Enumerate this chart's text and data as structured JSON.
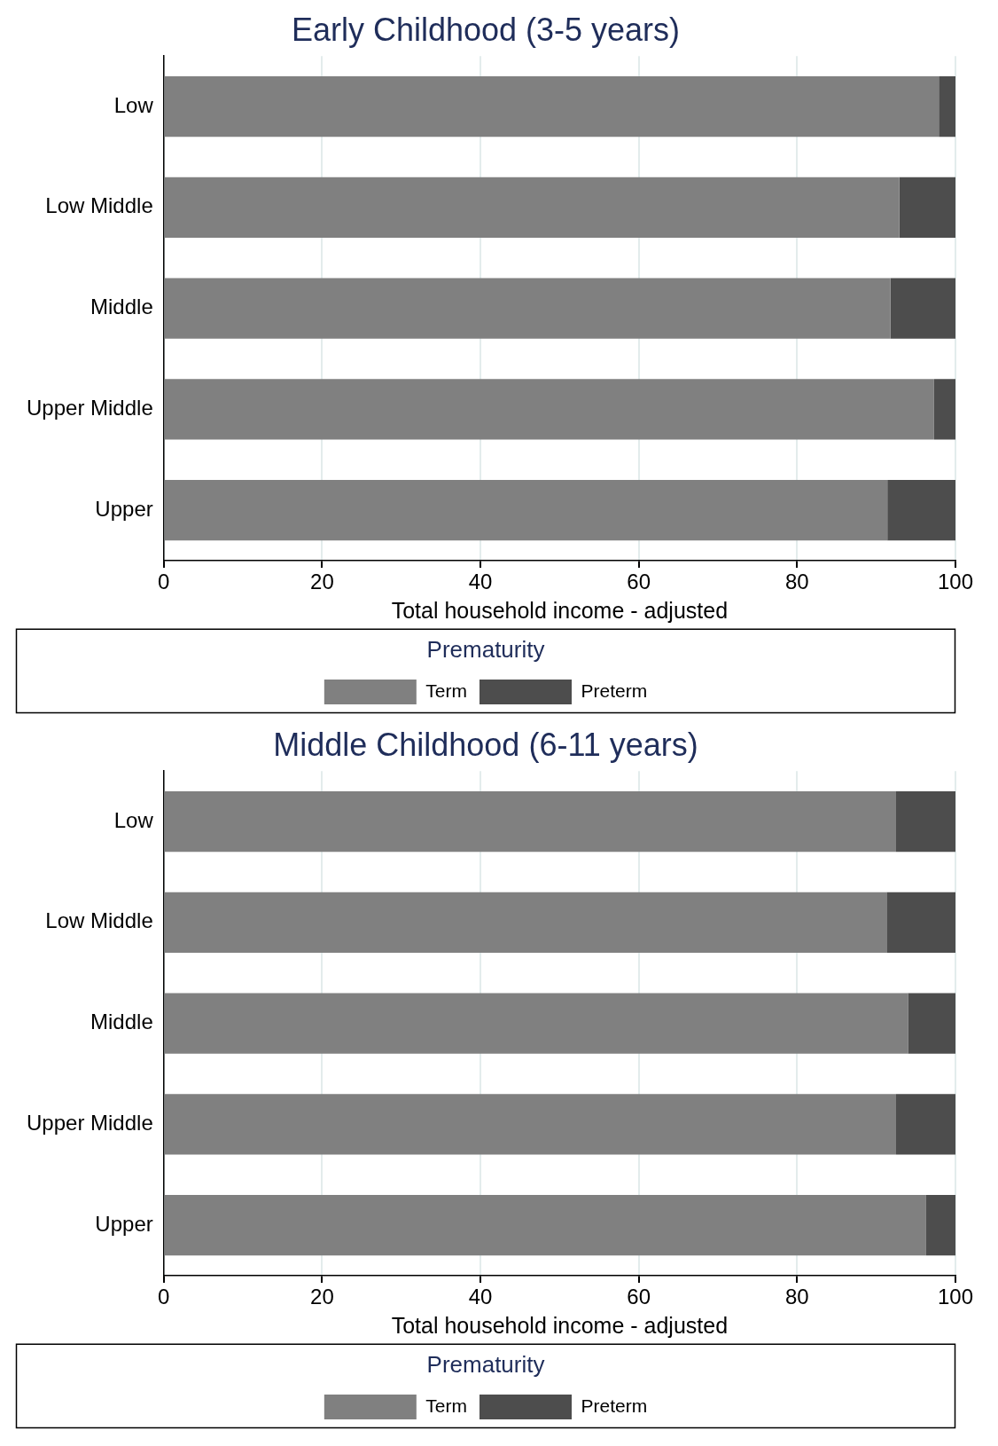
{
  "chart_data": [
    {
      "type": "bar",
      "orientation": "horizontal",
      "stacked": true,
      "title": "Early Childhood (3-5 years)",
      "xlabel": "Total household income - adjusted",
      "legend_title": "Prematurity",
      "legend": "bottom",
      "grid": "x",
      "categories": [
        "Low",
        "Low Middle",
        "Middle",
        "Upper Middle",
        "Upper"
      ],
      "xlim": [
        0,
        100
      ],
      "xticks": [
        0,
        20,
        40,
        60,
        80,
        100
      ],
      "series": [
        {
          "name": "Term",
          "color": "#808080",
          "values": [
            97.9,
            92.9,
            91.8,
            97.3,
            91.4
          ]
        },
        {
          "name": "Preterm",
          "color": "#4d4d4d",
          "values": [
            2.1,
            7.1,
            8.2,
            2.7,
            8.6
          ]
        }
      ]
    },
    {
      "type": "bar",
      "orientation": "horizontal",
      "stacked": true,
      "title": "Middle Childhood (6-11 years)",
      "xlabel": "Total household income - adjusted",
      "legend_title": "Prematurity",
      "legend": "bottom",
      "grid": "x",
      "categories": [
        "Low",
        "Low Middle",
        "Middle",
        "Upper Middle",
        "Upper"
      ],
      "xlim": [
        0,
        100
      ],
      "xticks": [
        0,
        20,
        40,
        60,
        80,
        100
      ],
      "series": [
        {
          "name": "Term",
          "color": "#808080",
          "values": [
            92.5,
            91.3,
            94.0,
            92.5,
            96.3
          ]
        },
        {
          "name": "Preterm",
          "color": "#4d4d4d",
          "values": [
            7.5,
            8.7,
            6.0,
            7.5,
            3.7
          ]
        }
      ]
    }
  ]
}
